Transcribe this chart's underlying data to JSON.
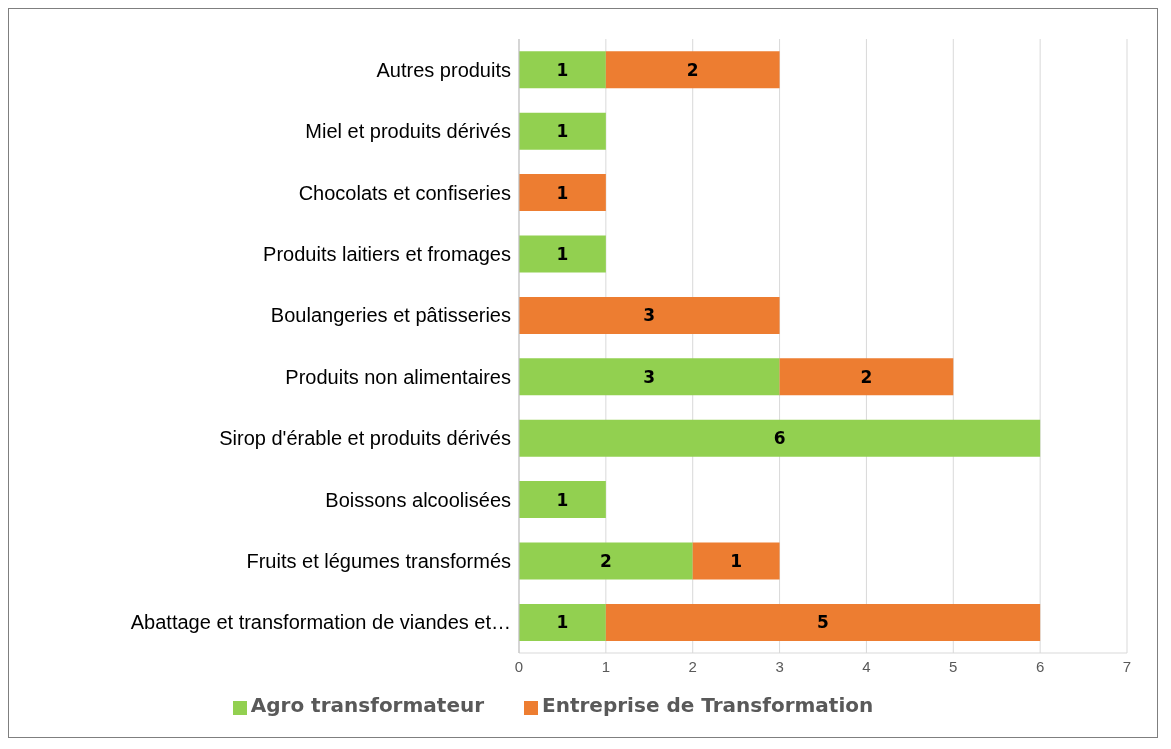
{
  "chart_data": {
    "type": "bar",
    "orientation": "horizontal",
    "stacked": true,
    "categories": [
      "Autres produits",
      "Miel et produits dérivés",
      "Chocolats et confiseries",
      "Produits laitiers et fromages",
      "Boulangeries et pâtisseries",
      "Produits non alimentaires",
      "Sirop d'érable et produits dérivés",
      "Boissons alcoolisées",
      "Fruits et légumes transformés",
      "Abattage et transformation de viandes et…"
    ],
    "series": [
      {
        "name": "Agro transformateur",
        "color": "#92d050",
        "values": [
          1,
          1,
          null,
          1,
          null,
          3,
          6,
          1,
          2,
          1
        ]
      },
      {
        "name": "Entreprise de Transformation",
        "color": "#ed7d31",
        "values": [
          2,
          null,
          1,
          null,
          3,
          2,
          null,
          null,
          1,
          5
        ]
      }
    ],
    "xlim": [
      0,
      7
    ],
    "xticks": [
      0,
      1,
      2,
      3,
      4,
      5,
      6,
      7
    ],
    "grid": "x",
    "legend": "bottom",
    "data_labels": true
  }
}
